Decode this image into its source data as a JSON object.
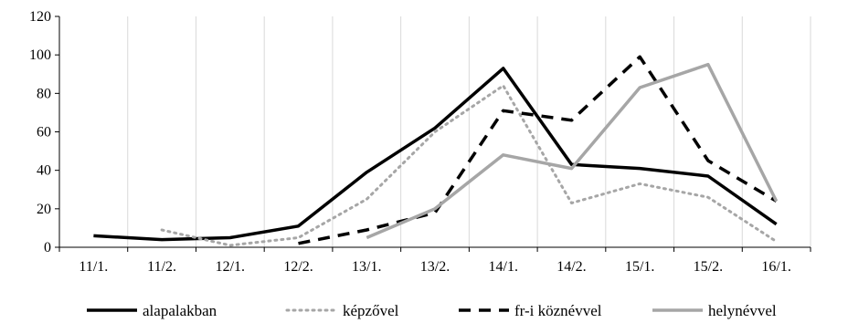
{
  "chart_data": {
    "type": "line",
    "categories": [
      "11/1.",
      "11/2.",
      "12/1.",
      "12/2.",
      "13/1.",
      "13/2.",
      "14/1.",
      "14/2.",
      "15/1.",
      "15/2.",
      "16/1."
    ],
    "yticks": [
      "0",
      "20",
      "40",
      "60",
      "80",
      "100",
      "120"
    ],
    "ylim": [
      0,
      120
    ],
    "grid": "vertical",
    "legend_position": "bottom",
    "series": [
      {
        "name": "alapalakban",
        "color": "#000000",
        "style": "solid",
        "values": [
          6,
          4,
          5,
          11,
          39,
          62,
          93,
          43,
          41,
          37,
          12
        ]
      },
      {
        "name": "képzővel",
        "color": "#a6a6a6",
        "style": "dotted",
        "values": [
          null,
          9,
          1,
          5,
          25,
          60,
          84,
          23,
          33,
          26,
          3
        ]
      },
      {
        "name": "fr-i köznévvel",
        "color": "#000000",
        "style": "dashed",
        "values": [
          null,
          null,
          null,
          2,
          9,
          18,
          71,
          66,
          99,
          45,
          24
        ]
      },
      {
        "name": "helynévvel",
        "color": "#a6a6a6",
        "style": "solid",
        "values": [
          null,
          null,
          null,
          null,
          5,
          20,
          48,
          41,
          83,
          95,
          24
        ]
      }
    ]
  }
}
